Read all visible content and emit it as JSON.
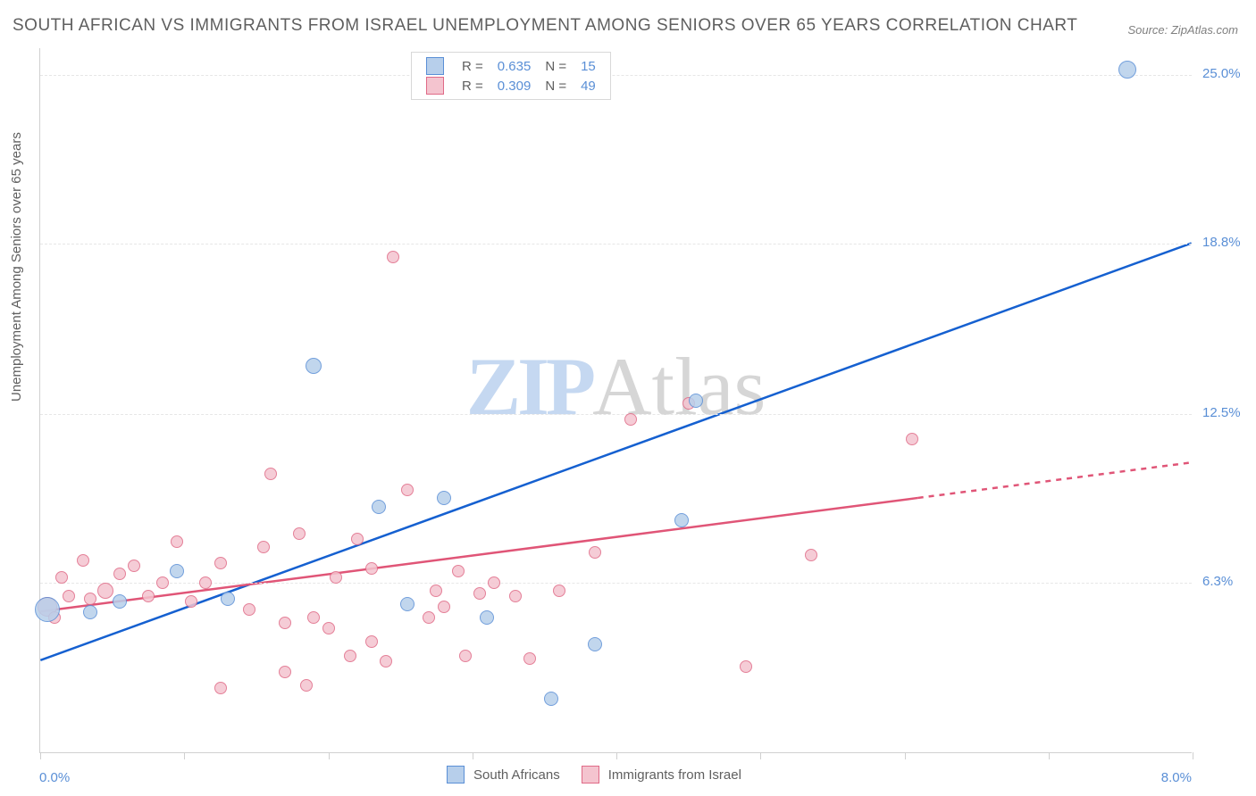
{
  "title": "SOUTH AFRICAN VS IMMIGRANTS FROM ISRAEL UNEMPLOYMENT AMONG SENIORS OVER 65 YEARS CORRELATION CHART",
  "source": "Source: ZipAtlas.com",
  "y_axis_label": "Unemployment Among Seniors over 65 years",
  "watermark_a": "ZIP",
  "watermark_b": "Atlas",
  "chart": {
    "type": "scatter",
    "xlim": [
      0,
      8
    ],
    "ylim": [
      0,
      26
    ],
    "x_tick_values": [
      0,
      1,
      2,
      3,
      4,
      5,
      6,
      7,
      8
    ],
    "x_tick_labels": {
      "first": "0.0%",
      "last": "8.0%"
    },
    "y_grid": [
      {
        "value": 6.3,
        "label": "6.3%"
      },
      {
        "value": 12.5,
        "label": "12.5%"
      },
      {
        "value": 18.8,
        "label": "18.8%"
      },
      {
        "value": 25.0,
        "label": "25.0%"
      }
    ],
    "grid_color": "#e6e6e6",
    "axis_color": "#d0d0d0",
    "background_color": "#ffffff",
    "series": [
      {
        "name": "South Africans",
        "marker_fill": "#b7cfeb",
        "marker_stroke": "#5a8fd6",
        "marker_opacity": 0.85,
        "trend": {
          "x1": 0,
          "y1": 3.4,
          "x2": 8,
          "y2": 18.8,
          "color": "#1560d0",
          "width": 2.5,
          "dash_from_x": 8
        },
        "stats": {
          "R": "0.635",
          "N": "15"
        },
        "points": [
          {
            "x": 0.05,
            "y": 5.3,
            "r": 14
          },
          {
            "x": 0.35,
            "y": 5.2,
            "r": 8
          },
          {
            "x": 0.55,
            "y": 5.6,
            "r": 8
          },
          {
            "x": 0.95,
            "y": 6.7,
            "r": 8
          },
          {
            "x": 1.3,
            "y": 5.7,
            "r": 8
          },
          {
            "x": 1.9,
            "y": 14.3,
            "r": 9
          },
          {
            "x": 2.35,
            "y": 9.1,
            "r": 8
          },
          {
            "x": 2.55,
            "y": 5.5,
            "r": 8
          },
          {
            "x": 2.8,
            "y": 9.4,
            "r": 8
          },
          {
            "x": 3.1,
            "y": 5.0,
            "r": 8
          },
          {
            "x": 3.55,
            "y": 2.0,
            "r": 8
          },
          {
            "x": 3.85,
            "y": 4.0,
            "r": 8
          },
          {
            "x": 4.45,
            "y": 8.6,
            "r": 8
          },
          {
            "x": 4.55,
            "y": 13.0,
            "r": 8
          },
          {
            "x": 7.55,
            "y": 25.2,
            "r": 10
          }
        ]
      },
      {
        "name": "Immigrants from Israel",
        "marker_fill": "#f4c4cf",
        "marker_stroke": "#e06a87",
        "marker_opacity": 0.85,
        "trend": {
          "x1": 0,
          "y1": 5.2,
          "x2": 8,
          "y2": 10.7,
          "color": "#e05577",
          "width": 2.5,
          "dash_from_x": 6.1
        },
        "stats": {
          "R": "0.309",
          "N": "49"
        },
        "points": [
          {
            "x": 0.05,
            "y": 5.4,
            "r": 11
          },
          {
            "x": 0.15,
            "y": 6.5,
            "r": 7
          },
          {
            "x": 0.2,
            "y": 5.8,
            "r": 7
          },
          {
            "x": 0.3,
            "y": 7.1,
            "r": 7
          },
          {
            "x": 0.35,
            "y": 5.7,
            "r": 7
          },
          {
            "x": 0.45,
            "y": 6.0,
            "r": 9
          },
          {
            "x": 0.55,
            "y": 6.6,
            "r": 7
          },
          {
            "x": 0.65,
            "y": 6.9,
            "r": 7
          },
          {
            "x": 0.75,
            "y": 5.8,
            "r": 7
          },
          {
            "x": 0.85,
            "y": 6.3,
            "r": 7
          },
          {
            "x": 0.95,
            "y": 7.8,
            "r": 7
          },
          {
            "x": 1.05,
            "y": 5.6,
            "r": 7
          },
          {
            "x": 1.15,
            "y": 6.3,
            "r": 7
          },
          {
            "x": 1.25,
            "y": 7.0,
            "r": 7
          },
          {
            "x": 1.25,
            "y": 2.4,
            "r": 7
          },
          {
            "x": 1.45,
            "y": 5.3,
            "r": 7
          },
          {
            "x": 1.55,
            "y": 7.6,
            "r": 7
          },
          {
            "x": 1.6,
            "y": 10.3,
            "r": 7
          },
          {
            "x": 1.7,
            "y": 4.8,
            "r": 7
          },
          {
            "x": 1.7,
            "y": 3.0,
            "r": 7
          },
          {
            "x": 1.8,
            "y": 8.1,
            "r": 7
          },
          {
            "x": 1.85,
            "y": 2.5,
            "r": 7
          },
          {
            "x": 1.9,
            "y": 5.0,
            "r": 7
          },
          {
            "x": 2.0,
            "y": 4.6,
            "r": 7
          },
          {
            "x": 2.05,
            "y": 6.5,
            "r": 7
          },
          {
            "x": 2.15,
            "y": 3.6,
            "r": 7
          },
          {
            "x": 2.2,
            "y": 7.9,
            "r": 7
          },
          {
            "x": 2.3,
            "y": 4.1,
            "r": 7
          },
          {
            "x": 2.3,
            "y": 6.8,
            "r": 7
          },
          {
            "x": 2.4,
            "y": 3.4,
            "r": 7
          },
          {
            "x": 2.45,
            "y": 18.3,
            "r": 7
          },
          {
            "x": 2.55,
            "y": 9.7,
            "r": 7
          },
          {
            "x": 2.7,
            "y": 5.0,
            "r": 7
          },
          {
            "x": 2.75,
            "y": 6.0,
            "r": 7
          },
          {
            "x": 2.8,
            "y": 5.4,
            "r": 7
          },
          {
            "x": 2.9,
            "y": 6.7,
            "r": 7
          },
          {
            "x": 2.95,
            "y": 3.6,
            "r": 7
          },
          {
            "x": 3.05,
            "y": 5.9,
            "r": 7
          },
          {
            "x": 3.15,
            "y": 6.3,
            "r": 7
          },
          {
            "x": 3.3,
            "y": 5.8,
            "r": 7
          },
          {
            "x": 3.4,
            "y": 3.5,
            "r": 7
          },
          {
            "x": 3.6,
            "y": 6.0,
            "r": 7
          },
          {
            "x": 3.85,
            "y": 7.4,
            "r": 7
          },
          {
            "x": 4.1,
            "y": 12.3,
            "r": 7
          },
          {
            "x": 4.9,
            "y": 3.2,
            "r": 7
          },
          {
            "x": 5.35,
            "y": 7.3,
            "r": 7
          },
          {
            "x": 6.05,
            "y": 11.6,
            "r": 7
          },
          {
            "x": 4.5,
            "y": 12.9,
            "r": 7
          },
          {
            "x": 0.1,
            "y": 5.0,
            "r": 7
          }
        ]
      }
    ]
  },
  "legend_bottom": [
    {
      "label": "South Africans",
      "fill": "#b7cfeb",
      "stroke": "#5a8fd6"
    },
    {
      "label": "Immigrants from Israel",
      "fill": "#f4c4cf",
      "stroke": "#e06a87"
    }
  ],
  "legend_top_labels": {
    "R": "R =",
    "N": "N ="
  }
}
